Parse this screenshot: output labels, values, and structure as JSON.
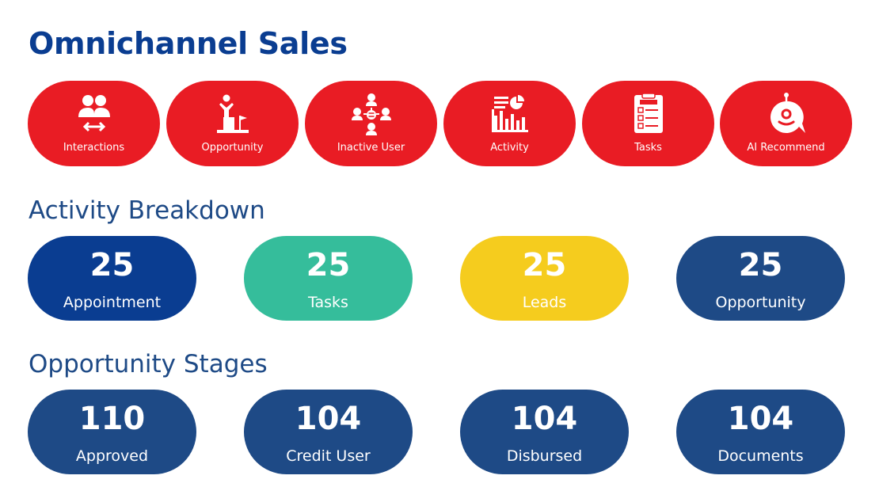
{
  "header": {
    "title": "Omnichannel Sales"
  },
  "quick_actions": [
    {
      "label": "Interactions",
      "icon": "users-exchange-icon"
    },
    {
      "label": "Opportunity",
      "icon": "podium-flag-icon"
    },
    {
      "label": "Inactive User",
      "icon": "user-network-icon"
    },
    {
      "label": "Activity",
      "icon": "activity-chart-icon"
    },
    {
      "label": "Tasks",
      "icon": "task-checklist-icon"
    },
    {
      "label": "AI Recommend",
      "icon": "ai-robot-chat-icon"
    }
  ],
  "activity_breakdown": {
    "title": "Activity Breakdown",
    "items": [
      {
        "value": "25",
        "label": "Appointment",
        "color": "#0a3d91"
      },
      {
        "value": "25",
        "label": "Tasks",
        "color": "#35bd9b"
      },
      {
        "value": "25",
        "label": "Leads",
        "color": "#f5cc1e"
      },
      {
        "value": "25",
        "label": "Opportunity",
        "color": "#1e4a86"
      }
    ]
  },
  "opportunity_stages": {
    "title": "Opportunity Stages",
    "items": [
      {
        "value": "110",
        "label": "Approved",
        "color": "#1e4a86"
      },
      {
        "value": "104",
        "label": "Credit User",
        "color": "#1e4a86"
      },
      {
        "value": "104",
        "label": "Disbursed",
        "color": "#1e4a86"
      },
      {
        "value": "104",
        "label": "Documents",
        "color": "#1e4a86"
      }
    ]
  },
  "colors": {
    "title": "#0a3d91",
    "section": "#1e4a86",
    "quick_action_bg": "#e91c24"
  }
}
